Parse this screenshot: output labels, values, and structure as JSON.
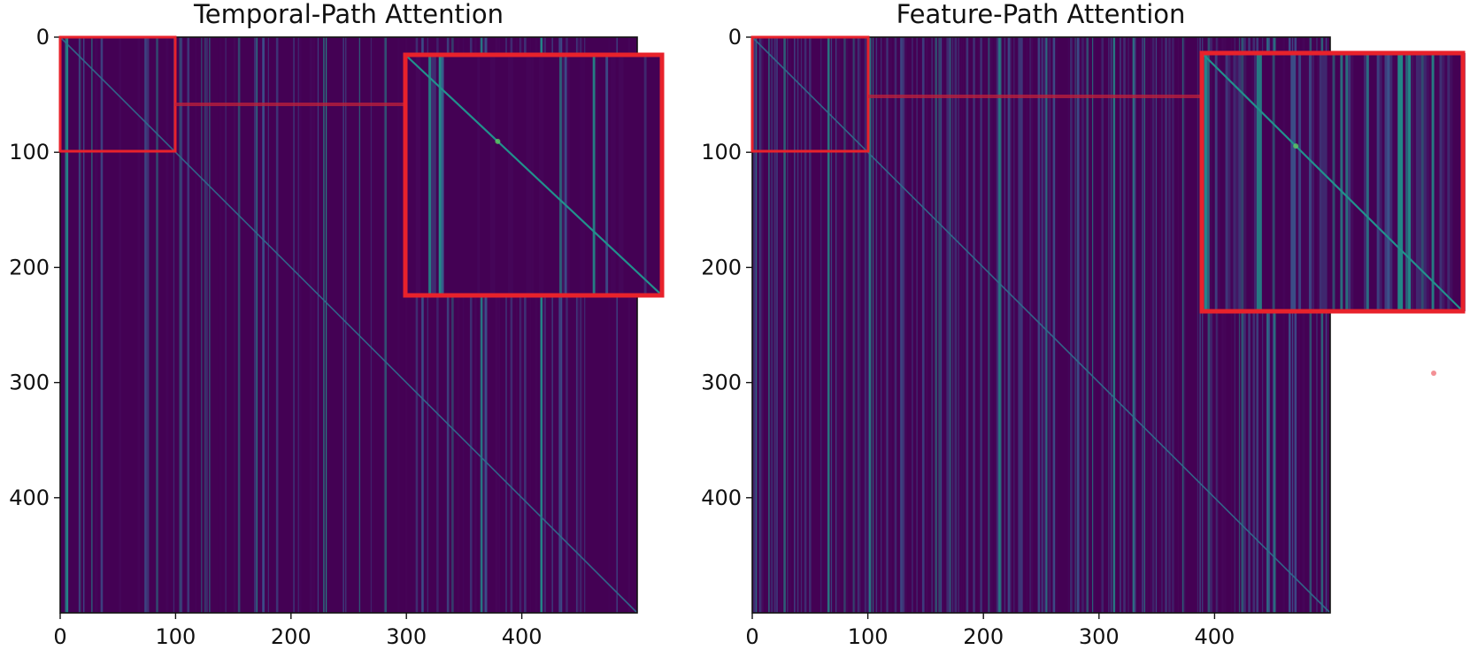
{
  "colors": {
    "background": "#440154",
    "low": "#46075a",
    "mid": "#3b528b",
    "high": "#21918c",
    "highlight": "#5ec962",
    "zoom_box": "#e8222b"
  },
  "chart_data": [
    {
      "type": "heatmap",
      "title": "Temporal-Path Attention",
      "matrix_size": 500,
      "xlim": [
        0,
        500
      ],
      "ylim": [
        500,
        0
      ],
      "xticks": [
        "0",
        "100",
        "200",
        "300",
        "400"
      ],
      "yticks": [
        "0",
        "100",
        "200",
        "300",
        "400"
      ],
      "diagonal": true,
      "zoom": {
        "region_x": [
          0,
          100
        ],
        "region_y": [
          0,
          100
        ]
      },
      "colormap": "viridis"
    },
    {
      "type": "heatmap",
      "title": "Feature-Path Attention",
      "matrix_size": 500,
      "xlim": [
        0,
        500
      ],
      "ylim": [
        500,
        0
      ],
      "xticks": [
        "0",
        "100",
        "200",
        "300",
        "400"
      ],
      "yticks": [
        "0",
        "100",
        "200",
        "300",
        "400"
      ],
      "diagonal": true,
      "zoom": {
        "region_x": [
          0,
          100
        ],
        "region_y": [
          0,
          100
        ]
      },
      "colormap": "viridis"
    }
  ]
}
